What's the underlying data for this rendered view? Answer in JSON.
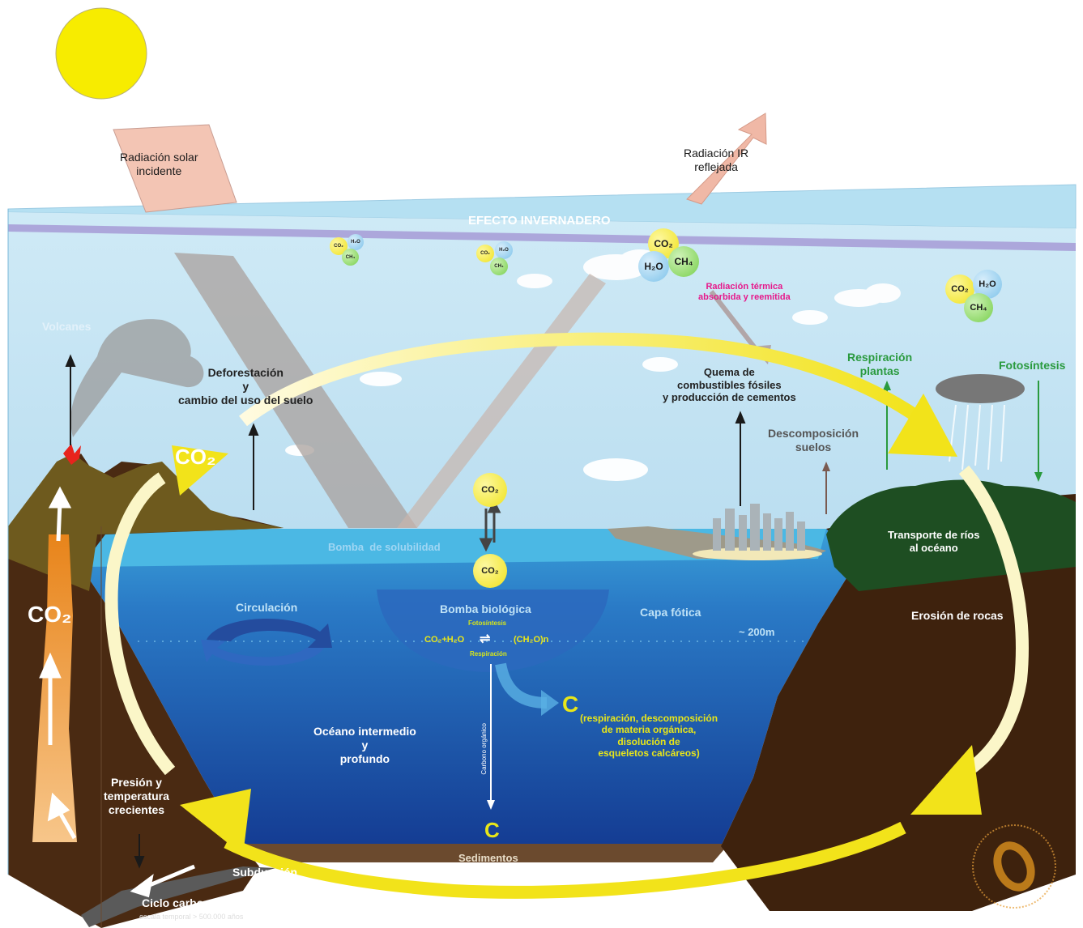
{
  "colors": {
    "sun": "#f7ec00",
    "sky": "#b8ddf0",
    "atmosphere_band": "#a9a0d8",
    "ocean_surface": "#4bb8e4",
    "ocean_deep": "#123f95",
    "ground": "#4a2a12",
    "cycle_arrow": "#f2e31a",
    "green_label": "#2a9a3e",
    "magenta_label": "#e6198b",
    "yellow_label": "#e8e619"
  },
  "labels": {
    "radiacion_solar": "Radiación solar\nincidente",
    "radiacion_ir": "Radiación IR\nreflejada",
    "efecto_invernadero": "EFECTO INVERNADERO",
    "radiacion_termica": "Radiación térmica\nabsorbida y reemitida",
    "volcanes": "Volcanes",
    "deforestacion": "Deforestación\ny\ncambio del uso del suelo",
    "quema": "Quema de\ncombustibles fósiles\ny producción de cementos",
    "respiracion_plantas": "Respiración\nplantas",
    "fotosintesis": "Fotosíntesis",
    "descomposicion": "Descomposición\nsuelos",
    "bomba_solubilidad": "Bomba  de solubilidad",
    "transporte": "Transporte de ríos\nal océano",
    "circulacion": "Circulación",
    "bomba_biologica": "Bomba biológica",
    "fotosintesis_small": "Fotosíntesis",
    "respiracion_small": "Respiración",
    "reaction_left": "CO₂+H₂O",
    "reaction_right": "(CH₂O)n",
    "capa_fotica": "Capa fótica",
    "depth": "~ 200m",
    "erosion": "Erosión de rocas",
    "oceano": "Océano intermedio\ny\nprofundo",
    "carbono_organico": "Carbono orgánico",
    "c_big_1": "C",
    "c_big_2": "C",
    "c_detail": "(respiración, descomposición\nde materia orgánica,\ndisolución de\nesqueletos calcáreos)",
    "sedimentos": "Sedimentos",
    "presion": "Presión y\ntemperatura\ncrecientes",
    "subduccion": "Subducción",
    "ciclo": "Ciclo carbonato-silicato",
    "escala": "escala temporal  >  500.000 años",
    "co2_arrow": "CO₂",
    "co2_mantle": "CO₂"
  },
  "gas_bubbles": [
    {
      "co2": "CO₂",
      "h2o": "H₂O",
      "ch4": "CH₄"
    },
    {
      "co2": "CO₂",
      "h2o": "H₂O",
      "ch4": "CH₄"
    },
    {
      "co2": "CO₂",
      "h2o": "H₂O",
      "ch4": "CH₄"
    },
    {
      "co2": "CO₂",
      "h2o": "H₂O",
      "ch4": "CH₄"
    }
  ],
  "ocean_exchange": {
    "top": "CO₂",
    "bottom": "CO₂"
  }
}
